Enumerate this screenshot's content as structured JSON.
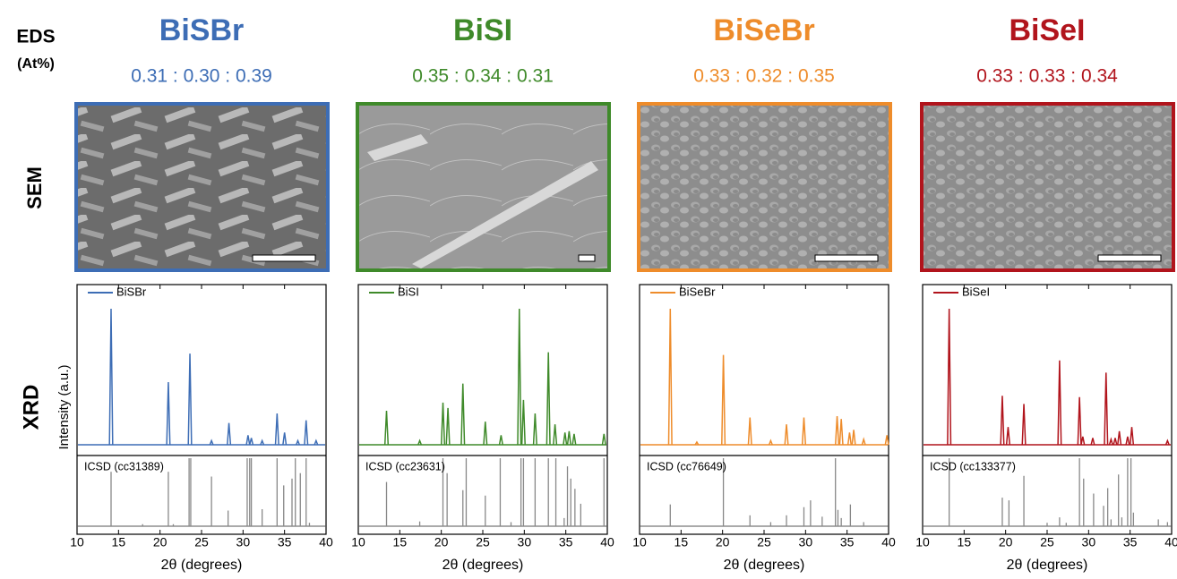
{
  "row_labels": {
    "eds": "EDS",
    "at": "(At%)",
    "sem": "SEM",
    "xrd": "XRD"
  },
  "chart_data": [
    {
      "type": "xrd",
      "title": "BiSBr",
      "eds": "0.31 : 0.30 : 0.39",
      "color": "#3d6db5",
      "ylabel": "Intensity (a.u.)",
      "xlabel": "2θ (degrees)",
      "xlim": [
        10,
        40
      ],
      "xticks": [
        10,
        15,
        20,
        25,
        30,
        35,
        40
      ],
      "ylim": [
        0,
        100
      ],
      "series": [
        {
          "name": "BiSBr",
          "color": "#3d6db5",
          "x": [
            14.1,
            21.0,
            23.6,
            26.2,
            28.3,
            30.6,
            31.0,
            32.3,
            34.1,
            35.0,
            36.6,
            37.6,
            38.8
          ],
          "values": [
            100,
            46,
            67,
            3,
            16,
            7,
            5,
            3,
            23,
            9,
            3,
            18,
            3
          ]
        }
      ],
      "reference": {
        "name": "ICSD (cc31389)",
        "color": "#888888",
        "x": [
          14.1,
          17.9,
          21.0,
          21.6,
          23.5,
          23.7,
          26.2,
          28.2,
          30.5,
          30.8,
          31.0,
          32.3,
          34.1,
          34.9,
          35.9,
          36.3,
          36.9,
          37.6,
          38.0
        ],
        "values": [
          80,
          3,
          80,
          3,
          100,
          100,
          73,
          23,
          100,
          100,
          100,
          25,
          100,
          60,
          70,
          100,
          78,
          100,
          5
        ]
      }
    },
    {
      "type": "xrd",
      "title": "BiSI",
      "eds": "0.35 : 0.34 : 0.31",
      "color": "#3f8a2a",
      "xlabel": "2θ (degrees)",
      "xlim": [
        10,
        40
      ],
      "xticks": [
        10,
        15,
        20,
        25,
        30,
        35,
        40
      ],
      "ylim": [
        0,
        100
      ],
      "series": [
        {
          "name": "BiSI",
          "color": "#3f8a2a",
          "x": [
            13.4,
            17.4,
            20.2,
            20.8,
            22.6,
            25.3,
            27.2,
            29.4,
            29.9,
            31.3,
            32.9,
            33.7,
            34.9,
            35.4,
            36.0,
            39.6
          ],
          "values": [
            25,
            3,
            31,
            27,
            45,
            17,
            7,
            100,
            33,
            23,
            68,
            15,
            9,
            10,
            8,
            8
          ]
        }
      ],
      "reference": {
        "name": "ICSD (cc23631)",
        "color": "#888888",
        "x": [
          13.4,
          17.4,
          20.2,
          20.7,
          22.6,
          23.0,
          25.3,
          27.1,
          28.4,
          29.6,
          29.9,
          31.3,
          32.9,
          33.8,
          34.8,
          35.2,
          35.6,
          36.1,
          36.8,
          39.6
        ],
        "values": [
          65,
          7,
          100,
          78,
          53,
          100,
          45,
          100,
          6,
          100,
          100,
          100,
          100,
          100,
          12,
          88,
          70,
          55,
          33,
          100
        ]
      }
    },
    {
      "type": "xrd",
      "title": "BiSeBr",
      "eds": "0.33 : 0.32 : 0.35",
      "color": "#ee8c2b",
      "xlabel": "2θ (degrees)",
      "xlim": [
        10,
        40
      ],
      "xticks": [
        10,
        15,
        20,
        25,
        30,
        35,
        40
      ],
      "ylim": [
        0,
        100
      ],
      "series": [
        {
          "name": "BiSeBr",
          "color": "#ee8c2b",
          "x": [
            13.7,
            16.9,
            20.1,
            23.3,
            25.8,
            27.7,
            29.8,
            33.8,
            34.3,
            35.3,
            35.8,
            37.0,
            39.8
          ],
          "values": [
            100,
            2,
            66,
            20,
            3,
            15,
            20,
            21,
            19,
            9,
            11,
            4,
            7
          ]
        }
      ],
      "reference": {
        "name": "ICSD (cc76649)",
        "color": "#888888",
        "x": [
          13.7,
          20.1,
          23.3,
          25.8,
          27.7,
          29.8,
          30.6,
          32.0,
          33.6,
          33.9,
          34.3,
          35.4,
          37.0
        ],
        "values": [
          32,
          100,
          16,
          6,
          16,
          28,
          38,
          14,
          100,
          24,
          12,
          32,
          6
        ]
      }
    },
    {
      "type": "xrd",
      "title": "BiSeI",
      "eds": "0.33 : 0.33 : 0.34",
      "color": "#b1141c",
      "xlabel": "2θ (degrees)",
      "xlim": [
        10,
        40
      ],
      "xticks": [
        10,
        15,
        20,
        25,
        30,
        35,
        40
      ],
      "ylim": [
        0,
        100
      ],
      "series": [
        {
          "name": "BiSeI",
          "color": "#b1141c",
          "x": [
            13.2,
            19.6,
            20.3,
            22.2,
            26.5,
            28.9,
            29.3,
            30.5,
            32.1,
            32.7,
            33.2,
            33.7,
            34.7,
            35.2,
            39.5
          ],
          "values": [
            100,
            36,
            13,
            30,
            62,
            35,
            6,
            5,
            53,
            4,
            5,
            10,
            6,
            13,
            3
          ]
        }
      ],
      "reference": {
        "name": "ICSD (cc133377)",
        "color": "#888888",
        "x": [
          13.2,
          19.6,
          20.4,
          22.2,
          25.0,
          26.5,
          27.3,
          28.9,
          29.4,
          30.6,
          31.8,
          32.3,
          32.7,
          33.6,
          34.0,
          34.7,
          35.1,
          35.4,
          38.4,
          39.5
        ],
        "values": [
          100,
          42,
          38,
          74,
          5,
          13,
          5,
          100,
          70,
          48,
          30,
          56,
          10,
          76,
          13,
          100,
          100,
          20,
          10,
          6
        ]
      }
    }
  ]
}
